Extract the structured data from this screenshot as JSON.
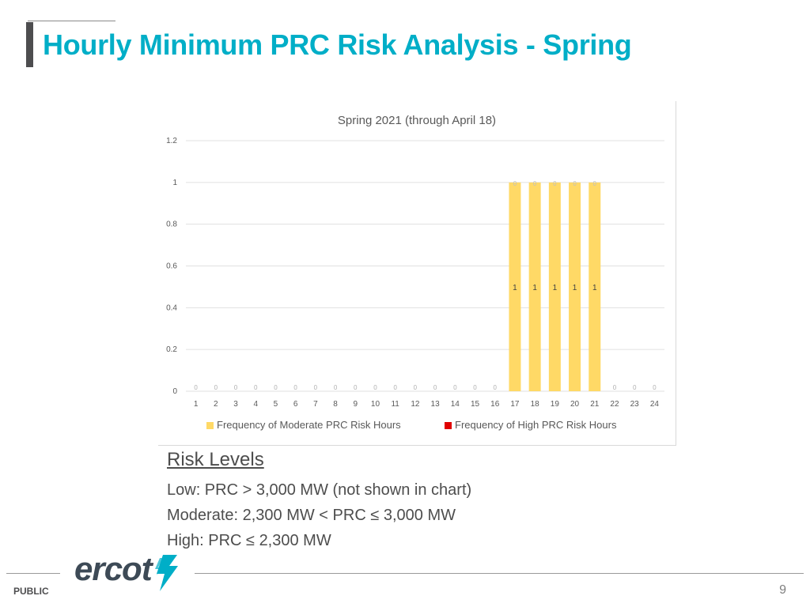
{
  "slide": {
    "title": "Hourly Minimum PRC Risk Analysis - Spring",
    "footer_label": "PUBLIC",
    "page_number": "9",
    "logo_text": "ercot"
  },
  "risk_levels": {
    "heading": "Risk Levels",
    "lines": [
      "Low: PRC > 3,000 MW (not shown in chart)",
      "Moderate: 2,300 MW < PRC ≤ 3,000 MW",
      "High: PRC ≤ 2,300 MW"
    ]
  },
  "chart_data": {
    "type": "bar",
    "stacked": true,
    "title": "Spring 2021 (through April 18)",
    "categories": [
      "1",
      "2",
      "3",
      "4",
      "5",
      "6",
      "7",
      "8",
      "9",
      "10",
      "11",
      "12",
      "13",
      "14",
      "15",
      "16",
      "17",
      "18",
      "19",
      "20",
      "21",
      "22",
      "23",
      "24"
    ],
    "series": [
      {
        "name": "Frequency of Moderate PRC Risk Hours",
        "color": "#ffd966",
        "values": [
          0,
          0,
          0,
          0,
          0,
          0,
          0,
          0,
          0,
          0,
          0,
          0,
          0,
          0,
          0,
          0,
          1,
          1,
          1,
          1,
          1,
          0,
          0,
          0
        ]
      },
      {
        "name": "Frequency of High PRC Risk Hours",
        "color": "#e00000",
        "values": [
          0,
          0,
          0,
          0,
          0,
          0,
          0,
          0,
          0,
          0,
          0,
          0,
          0,
          0,
          0,
          0,
          0,
          0,
          0,
          0,
          0,
          0,
          0,
          0
        ]
      }
    ],
    "ylim": [
      0,
      1.2
    ],
    "yticks": [
      "0",
      "0.2",
      "0.4",
      "0.6",
      "0.8",
      "1",
      "1.2"
    ],
    "grid": true,
    "legend_position": "bottom",
    "label_color": "#bfbfbf"
  }
}
